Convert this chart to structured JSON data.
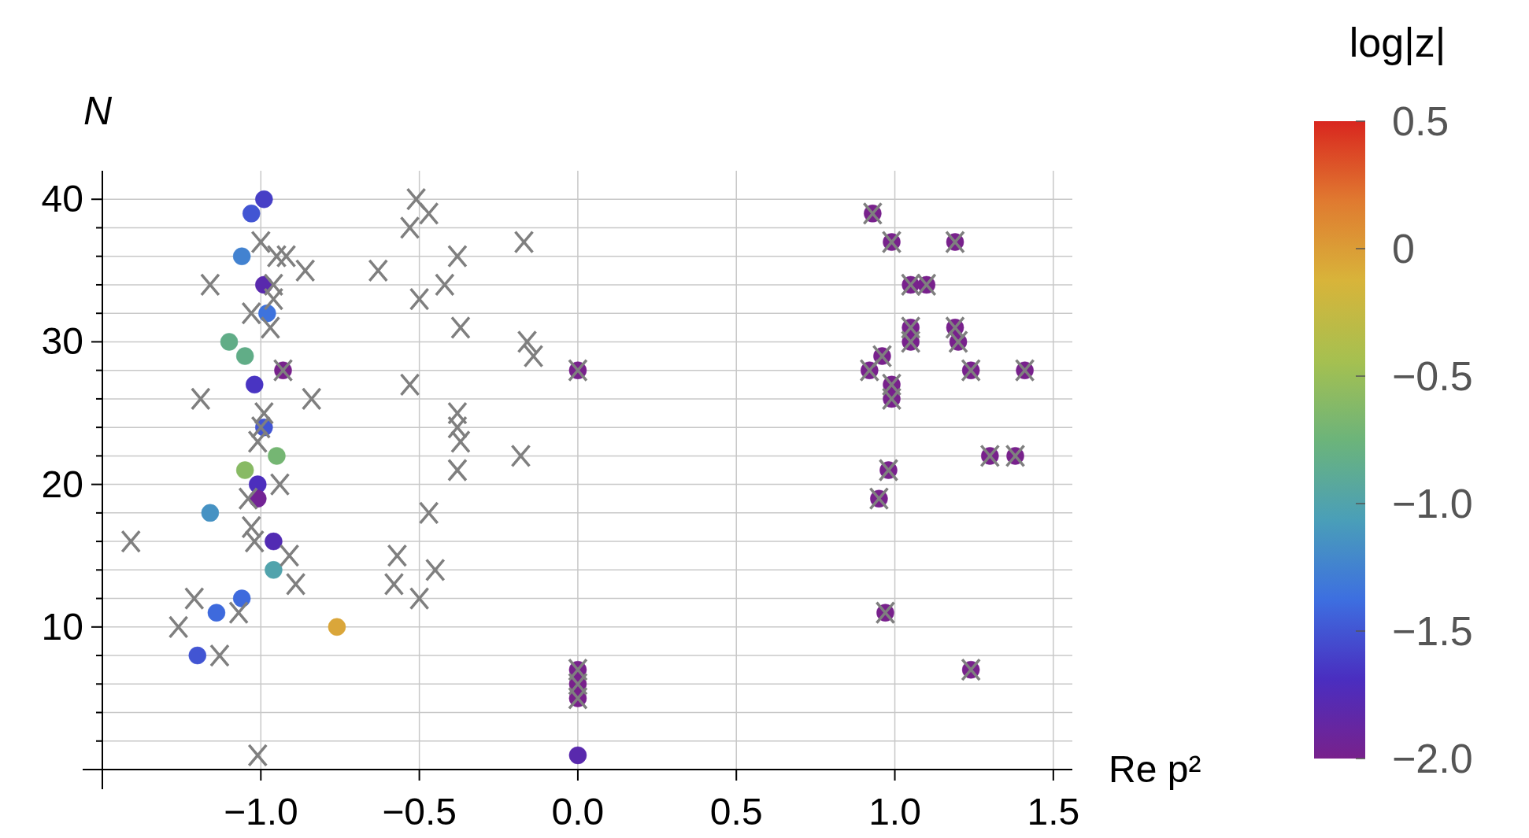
{
  "chart_data": {
    "type": "scatter",
    "xlabel": "Re p²",
    "ylabel": "N",
    "clabel": "log|z|",
    "xlim": [
      -1.5,
      1.56
    ],
    "ylim": [
      0,
      42
    ],
    "xticks": [
      {
        "value": -1,
        "label": "−1.0"
      },
      {
        "value": -0.5,
        "label": "−0.5"
      },
      {
        "value": 0,
        "label": "0.0"
      },
      {
        "value": 0.5,
        "label": "0.5"
      },
      {
        "value": 1,
        "label": "1.0"
      },
      {
        "value": 1.5,
        "label": "1.5"
      }
    ],
    "yticks": [
      {
        "value": 2,
        "label": null
      },
      {
        "value": 4,
        "label": null
      },
      {
        "value": 6,
        "label": null
      },
      {
        "value": 8,
        "label": null
      },
      10,
      {
        "value": 12,
        "label": null
      },
      {
        "value": 14,
        "label": null
      },
      {
        "value": 16,
        "label": null
      },
      {
        "value": 18,
        "label": null
      },
      20,
      {
        "value": 22,
        "label": null
      },
      {
        "value": 24,
        "label": null
      },
      {
        "value": 26,
        "label": null
      },
      {
        "value": 28,
        "label": null
      },
      30,
      {
        "value": 32,
        "label": null
      },
      {
        "value": 34,
        "label": null
      },
      {
        "value": 36,
        "label": null
      },
      {
        "value": 38,
        "label": null
      },
      40
    ],
    "grid": true,
    "clim": [
      -2,
      0.5
    ],
    "cticks": [
      {
        "value": -2,
        "label": "−2.0"
      },
      {
        "value": -1.5,
        "label": "−1.5"
      },
      {
        "value": -1,
        "label": "−1.0"
      },
      {
        "value": -0.5,
        "label": "−0.5"
      },
      {
        "value": 0,
        "label": "0"
      },
      {
        "value": 0.5,
        "label": "0.5"
      }
    ],
    "series": [
      {
        "type": "scatter",
        "marker": "circle",
        "x": [
          -0.99,
          -1.03,
          -1.06,
          -0.99,
          -0.98,
          -1.1,
          -1.05,
          -1.02,
          -0.93,
          -0.99,
          -0.95,
          -1.05,
          -1.01,
          -1.01,
          -1.16,
          -0.96,
          -0.96,
          -1.06,
          -1.14,
          -0.76,
          -1.2,
          0,
          0,
          0,
          0,
          0,
          0.93,
          0.99,
          1.19,
          1.05,
          1.1,
          1.05,
          1.05,
          1.19,
          1.2,
          0.96,
          0.92,
          0.99,
          0.99,
          1.24,
          1.41,
          1.3,
          1.38,
          0.98,
          0.95,
          0.97,
          1.24
        ],
        "values": [
          40,
          39,
          36,
          34,
          32,
          30,
          29,
          27,
          28,
          24,
          22,
          21,
          20,
          19,
          18,
          16,
          14,
          12,
          11,
          10,
          8,
          28,
          7,
          6,
          5,
          1,
          39,
          37,
          37,
          34,
          34,
          31,
          30,
          31,
          30,
          29,
          28,
          27,
          26,
          28,
          28,
          22,
          22,
          21,
          19,
          11,
          7
        ],
        "colors": [
          "#473fc6",
          "#4255d3",
          "#4282d0",
          "#5929ad",
          "#3e73dd",
          "#61ad87",
          "#61ad87",
          "#4934c2",
          "#78218c",
          "#4255d3",
          "#75b673",
          "#88ba64",
          "#4c2ebd",
          "#732395",
          "#4692c3",
          "#522bb3",
          "#51a3ac",
          "#3e6add",
          "#3e6add",
          "#daa63a",
          "#4255d3",
          "#78218c",
          "#78218c",
          "#78218c",
          "#78218c",
          "#5929ad",
          "#78218c",
          "#78218c",
          "#78218c",
          "#78218c",
          "#78218c",
          "#78218c",
          "#78218c",
          "#78218c",
          "#78218c",
          "#78218c",
          "#78218c",
          "#78218c",
          "#78218c",
          "#78218c",
          "#78218c",
          "#78218c",
          "#78218c",
          "#78218c",
          "#78218c",
          "#78218c",
          "#78218c"
        ],
        "cvalues": [
          -1.6,
          -1.5,
          -1.25,
          -1.8,
          -1.35,
          -0.85,
          -0.85,
          -1.65,
          -2,
          -1.5,
          -0.7,
          -0.6,
          -1.7,
          -1.95,
          -1.15,
          -1.75,
          -1.0,
          -1.4,
          -1.4,
          -0.05,
          -1.5,
          -2,
          -2,
          -2,
          -2,
          -1.8,
          -2,
          -2,
          -2,
          -2,
          -2,
          -2,
          -2,
          -2,
          -2,
          -2,
          -2,
          -2,
          -2,
          -2,
          -2,
          -2,
          -2,
          -2,
          -2,
          -2,
          -2
        ]
      },
      {
        "type": "scatter",
        "marker": "cross",
        "color": "#7f7f7f",
        "x": [
          -0.51,
          -0.47,
          -0.53,
          -0.17,
          -1.0,
          -0.95,
          -0.92,
          -0.38,
          -0.86,
          -0.63,
          -1.16,
          -0.96,
          -0.42,
          -0.96,
          -0.5,
          -1.03,
          -0.97,
          -0.37,
          -0.16,
          -0.14,
          -0.93,
          0,
          -0.53,
          -1.19,
          -0.84,
          -0.99,
          -0.38,
          -1.0,
          -0.38,
          -0.37,
          -1.01,
          -0.18,
          -0.38,
          -0.94,
          -1.04,
          -0.47,
          -1.03,
          -1.02,
          -1.41,
          -0.91,
          -0.57,
          -0.45,
          -0.89,
          -0.58,
          -1.21,
          -0.5,
          -1.07,
          -1.26,
          -1.13,
          -1.01,
          0,
          0,
          0,
          0.93,
          0.99,
          1.19,
          1.05,
          1.1,
          1.05,
          1.05,
          1.19,
          1.2,
          0.96,
          0.92,
          0.99,
          0.99,
          1.24,
          1.41,
          1.3,
          1.38,
          0.98,
          0.95,
          0.97,
          1.24
        ],
        "values": [
          40,
          39,
          38,
          37,
          37,
          36,
          36,
          36,
          35,
          35,
          34,
          34,
          34,
          33,
          33,
          32,
          31,
          31,
          30,
          29,
          28,
          28,
          27,
          26,
          26,
          25,
          25,
          24,
          24,
          23,
          23,
          22,
          21,
          20,
          19,
          18,
          17,
          16,
          16,
          15,
          15,
          14,
          13,
          13,
          12,
          12,
          11,
          10,
          8,
          1,
          7,
          6,
          5,
          39,
          37,
          37,
          34,
          34,
          31,
          30,
          31,
          30,
          29,
          28,
          27,
          26,
          28,
          28,
          22,
          22,
          21,
          19,
          11,
          7
        ]
      }
    ]
  }
}
